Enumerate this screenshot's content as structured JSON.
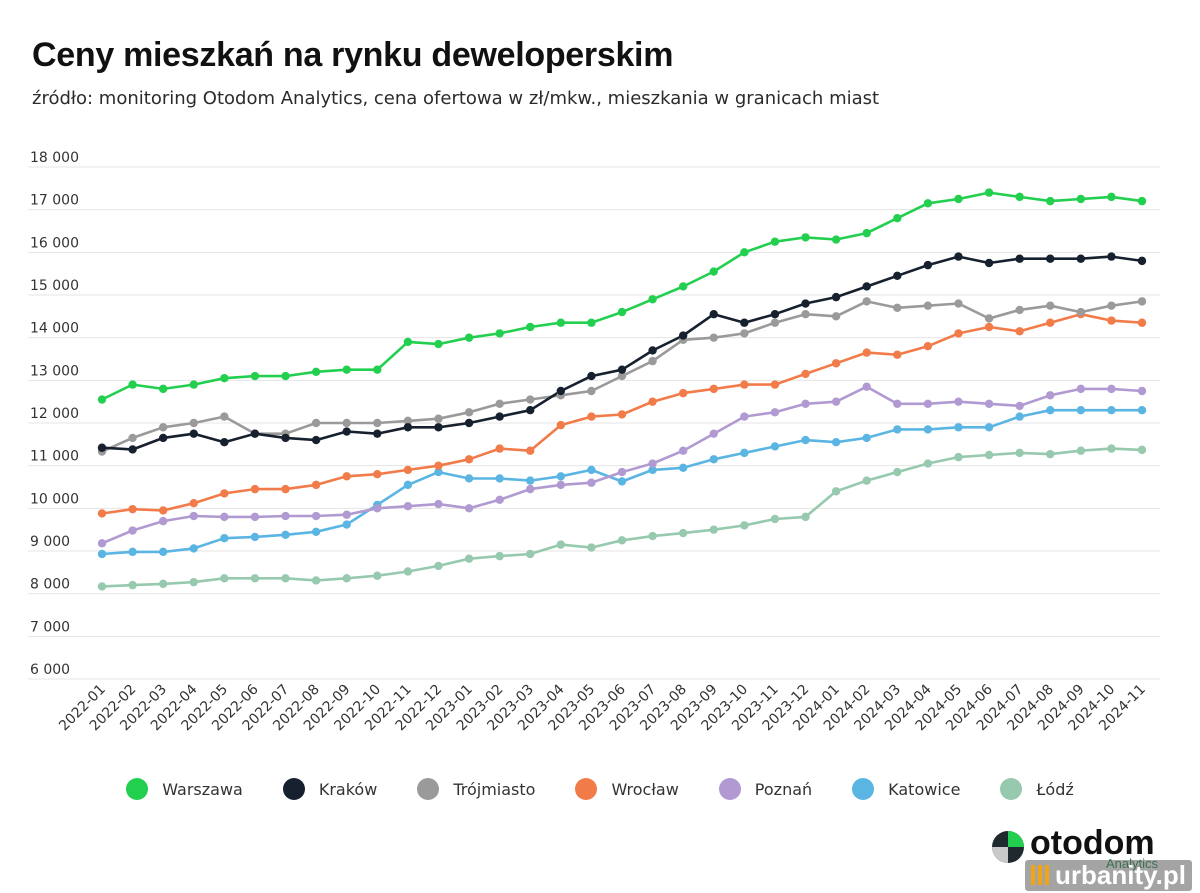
{
  "header": {
    "title": "Ceny mieszkań na rynku deweloperskim",
    "subtitle": "źródło: monitoring Otodom Analytics, cena ofertowa w zł/mkw., mieszkania w granicach miast"
  },
  "chart_data": {
    "type": "line",
    "title": "Ceny mieszkań na rynku deweloperskim",
    "subtitle": "źródło: monitoring Otodom Analytics, cena ofertowa w zł/mkw., mieszkania w granicach miast",
    "xlabel": "",
    "ylabel": "",
    "ylim": [
      6000,
      18000
    ],
    "yticks": [
      6000,
      7000,
      8000,
      9000,
      10000,
      11000,
      12000,
      13000,
      14000,
      15000,
      16000,
      17000,
      18000
    ],
    "ytick_labels": [
      "6 000",
      "7 000",
      "8 000",
      "9 000",
      "10 000",
      "11 000",
      "12 000",
      "13 000",
      "14 000",
      "15 000",
      "16 000",
      "17 000",
      "18 000"
    ],
    "grid": "horizontal",
    "legend_position": "bottom",
    "x": [
      "2022-01",
      "2022-02",
      "2022-03",
      "2022-04",
      "2022-05",
      "2022-06",
      "2022-07",
      "2022-08",
      "2022-09",
      "2022-10",
      "2022-11",
      "2022-12",
      "2023-01",
      "2023-02",
      "2023-03",
      "2023-04",
      "2023-05",
      "2023-06",
      "2023-07",
      "2023-08",
      "2023-09",
      "2023-10",
      "2023-11",
      "2023-12",
      "2024-01",
      "2024-02",
      "2024-03",
      "2024-04",
      "2024-05",
      "2024-06",
      "2024-07",
      "2024-08",
      "2024-09",
      "2024-10",
      "2024-11"
    ],
    "series": [
      {
        "name": "Warszawa",
        "color": "#22cf4f",
        "values": [
          12550,
          12900,
          12800,
          12900,
          13050,
          13100,
          13100,
          13200,
          13250,
          13250,
          13900,
          13850,
          14000,
          14100,
          14250,
          14350,
          14350,
          14600,
          14900,
          15200,
          15550,
          16000,
          16250,
          16350,
          16300,
          16450,
          16800,
          17150,
          17250,
          17400,
          17300,
          17200,
          17250,
          17300,
          17200
        ]
      },
      {
        "name": "Kraków",
        "color": "#16202e",
        "values": [
          11420,
          11380,
          11650,
          11750,
          11550,
          11750,
          11650,
          11600,
          11800,
          11750,
          11900,
          11900,
          12000,
          12150,
          12300,
          12750,
          13100,
          13250,
          13700,
          14050,
          14550,
          14350,
          14550,
          14800,
          14950,
          15200,
          15450,
          15700,
          15900,
          15750,
          15850,
          15850,
          15850,
          15900,
          15800
        ]
      },
      {
        "name": "Trójmiasto",
        "color": "#9a9a9a",
        "values": [
          11330,
          11650,
          11900,
          12000,
          12150,
          11750,
          11750,
          12000,
          12000,
          12000,
          12050,
          12100,
          12250,
          12450,
          12550,
          12650,
          12750,
          13100,
          13450,
          13950,
          14000,
          14100,
          14350,
          14550,
          14500,
          14850,
          14700,
          14750,
          14800,
          14450,
          14650,
          14750,
          14600,
          14750,
          14850
        ]
      },
      {
        "name": "Wrocław",
        "color": "#f27b4a",
        "values": [
          9880,
          9980,
          9950,
          10120,
          10350,
          10450,
          10450,
          10550,
          10750,
          10800,
          10900,
          11000,
          11150,
          11400,
          11350,
          11950,
          12150,
          12200,
          12500,
          12700,
          12800,
          12900,
          12900,
          13150,
          13400,
          13650,
          13600,
          13800,
          14100,
          14250,
          14150,
          14350,
          14550,
          14400,
          14350
        ]
      },
      {
        "name": "Poznań",
        "color": "#b09ad1",
        "values": [
          9180,
          9480,
          9700,
          9820,
          9800,
          9800,
          9820,
          9820,
          9850,
          10000,
          10050,
          10100,
          10000,
          10200,
          10450,
          10550,
          10600,
          10850,
          11050,
          11350,
          11750,
          12150,
          12250,
          12450,
          12500,
          12850,
          12450,
          12450,
          12500,
          12450,
          12400,
          12650,
          12800,
          12800,
          12750
        ]
      },
      {
        "name": "Katowice",
        "color": "#5bb5e3",
        "values": [
          8930,
          8980,
          8980,
          9060,
          9300,
          9330,
          9380,
          9450,
          9620,
          10080,
          10550,
          10850,
          10700,
          10700,
          10650,
          10750,
          10900,
          10630,
          10900,
          10950,
          11150,
          11300,
          11450,
          11600,
          11550,
          11650,
          11850,
          11850,
          11900,
          11900,
          12150,
          12300,
          12300,
          12300,
          12300
        ]
      },
      {
        "name": "Łódź",
        "color": "#96c9ad",
        "values": [
          8170,
          8200,
          8230,
          8270,
          8360,
          8360,
          8360,
          8310,
          8360,
          8420,
          8520,
          8650,
          8820,
          8880,
          8930,
          9150,
          9080,
          9250,
          9350,
          9420,
          9500,
          9600,
          9750,
          9800,
          10400,
          10650,
          10850,
          11050,
          11200,
          11250,
          11300,
          11270,
          11350,
          11400,
          11370
        ]
      }
    ]
  },
  "branding": {
    "logo_text": "otodom",
    "logo_sub": "Analytics",
    "watermark": "urbanity.pl"
  }
}
